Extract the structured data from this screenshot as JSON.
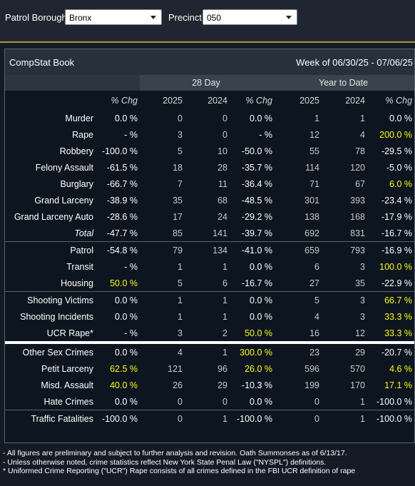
{
  "filters": {
    "borough_label": "Patrol Borough:",
    "borough_value": "Bronx",
    "precinct_label": "Precinct:",
    "precinct_value": "050"
  },
  "panel": {
    "title": "CompStat Book",
    "week": "Week of 06/30/25 - 07/06/25"
  },
  "groups": {
    "day28": "28 Day",
    "ytd": "Year to Date"
  },
  "headers": [
    "% Chg",
    "2025",
    "2024",
    "% Chg",
    "2025",
    "2024",
    "% Chg"
  ],
  "rows": [
    {
      "label": "Murder",
      "c": [
        "0.0 %",
        "0",
        "0",
        "0.0 %",
        "1",
        "1",
        "0.0 %"
      ],
      "hl": []
    },
    {
      "label": "Rape",
      "c": [
        "- %",
        "3",
        "0",
        "- %",
        "12",
        "4",
        "200.0 %"
      ],
      "hl": [
        6
      ]
    },
    {
      "label": "Robbery",
      "c": [
        "-100.0 %",
        "5",
        "10",
        "-50.0 %",
        "55",
        "78",
        "-29.5 %"
      ],
      "hl": []
    },
    {
      "label": "Felony Assault",
      "c": [
        "-61.5 %",
        "18",
        "28",
        "-35.7 %",
        "114",
        "120",
        "-5.0 %"
      ],
      "hl": []
    },
    {
      "label": "Burglary",
      "c": [
        "-66.7 %",
        "7",
        "11",
        "-36.4 %",
        "71",
        "67",
        "6.0 %"
      ],
      "hl": [
        6
      ]
    },
    {
      "label": "Grand Larceny",
      "c": [
        "-38.9 %",
        "35",
        "68",
        "-48.5 %",
        "301",
        "393",
        "-23.4 %"
      ],
      "hl": []
    },
    {
      "label": "Grand Larceny Auto",
      "c": [
        "-28.6 %",
        "17",
        "24",
        "-29.2 %",
        "138",
        "168",
        "-17.9 %"
      ],
      "hl": []
    },
    {
      "label": "Total",
      "c": [
        "-47.7 %",
        "85",
        "141",
        "-39.7 %",
        "692",
        "831",
        "-16.7 %"
      ],
      "hl": [],
      "italic": true
    },
    {
      "label": "Patrol",
      "c": [
        "-54.8 %",
        "79",
        "134",
        "-41.0 %",
        "659",
        "793",
        "-16.9 %"
      ],
      "hl": [],
      "sep": "b"
    },
    {
      "label": "Transit",
      "c": [
        "- %",
        "1",
        "1",
        "0.0 %",
        "6",
        "3",
        "100.0 %"
      ],
      "hl": [
        6
      ]
    },
    {
      "label": "Housing",
      "c": [
        "50.0 %",
        "5",
        "6",
        "-16.7 %",
        "27",
        "35",
        "-22.9 %"
      ],
      "hl": [
        0
      ]
    },
    {
      "label": "Shooting Victims",
      "c": [
        "0.0 %",
        "1",
        "1",
        "0.0 %",
        "5",
        "3",
        "66.7 %"
      ],
      "hl": [
        6
      ],
      "sep": "b"
    },
    {
      "label": "Shooting Incidents",
      "c": [
        "0.0 %",
        "1",
        "1",
        "0.0 %",
        "4",
        "3",
        "33.3 %"
      ],
      "hl": [
        6
      ]
    },
    {
      "label": "UCR Rape*",
      "c": [
        "- %",
        "3",
        "2",
        "50.0 %",
        "16",
        "12",
        "33.3 %"
      ],
      "hl": [
        3,
        6
      ]
    },
    {
      "label": "Other Sex Crimes",
      "c": [
        "0.0 %",
        "4",
        "1",
        "300.0 %",
        "23",
        "29",
        "-20.7 %"
      ],
      "hl": [
        3
      ],
      "sep": "w"
    },
    {
      "label": "Petit Larceny",
      "c": [
        "62.5 %",
        "121",
        "96",
        "26.0 %",
        "596",
        "570",
        "4.6 %"
      ],
      "hl": [
        0,
        3,
        6
      ]
    },
    {
      "label": "Misd. Assault",
      "c": [
        "40.0 %",
        "26",
        "29",
        "-10.3 %",
        "199",
        "170",
        "17.1 %"
      ],
      "hl": [
        0,
        6
      ]
    },
    {
      "label": "Hate Crimes",
      "c": [
        "0.0 %",
        "0",
        "0",
        "0.0 %",
        "0",
        "1",
        "-100.0 %"
      ],
      "hl": []
    },
    {
      "label": "Traffic Fatalities",
      "c": [
        "-100.0 %",
        "0",
        "1",
        "-100.0 %",
        "0",
        "1",
        "-100.0 %"
      ],
      "hl": [],
      "sep": "b"
    }
  ],
  "notes": [
    "- All figures are preliminary and subject to further analysis and revision. Oath Summonses as of 6/13/17.",
    "- Unless otherwise noted, crime statistics reflect New York State Penal Law (\"NYSPL\") definitions.",
    "* Uniformed Crime Reporting (\"UCR\") Rape consists of all crimes defined in the FBI UCR definition of rape"
  ],
  "colors": {
    "highlight": "#ffff00",
    "background": "#0d1520",
    "header": "#2d3540"
  }
}
